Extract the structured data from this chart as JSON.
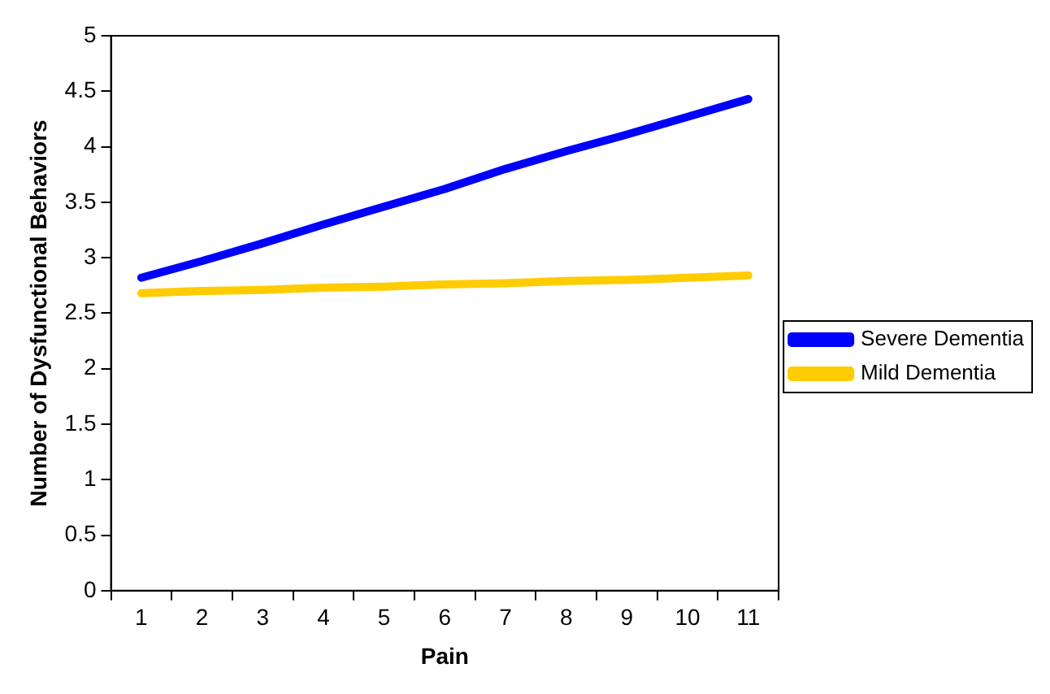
{
  "chart_data": {
    "type": "line",
    "xlabel": "Pain",
    "ylabel": "Number of Dysfunctional Behaviors",
    "categories": [
      "1",
      "2",
      "3",
      "4",
      "5",
      "6",
      "7",
      "8",
      "9",
      "10",
      "11"
    ],
    "series": [
      {
        "name": "Severe Dementia",
        "color": "#0000ff",
        "values": [
          2.82,
          2.97,
          3.13,
          3.3,
          3.46,
          3.62,
          3.8,
          3.96,
          4.11,
          4.27,
          4.43
        ]
      },
      {
        "name": "Mild Dementia",
        "color": "#ffcc00",
        "values": [
          2.68,
          2.7,
          2.71,
          2.73,
          2.74,
          2.76,
          2.77,
          2.79,
          2.8,
          2.82,
          2.84
        ]
      }
    ],
    "ylim": [
      0,
      5
    ],
    "yticks": [
      0,
      0.5,
      1,
      1.5,
      2,
      2.5,
      3,
      3.5,
      4,
      4.5,
      5
    ],
    "grid": false,
    "legend": "right",
    "marker": "none",
    "line_style": "solid"
  }
}
